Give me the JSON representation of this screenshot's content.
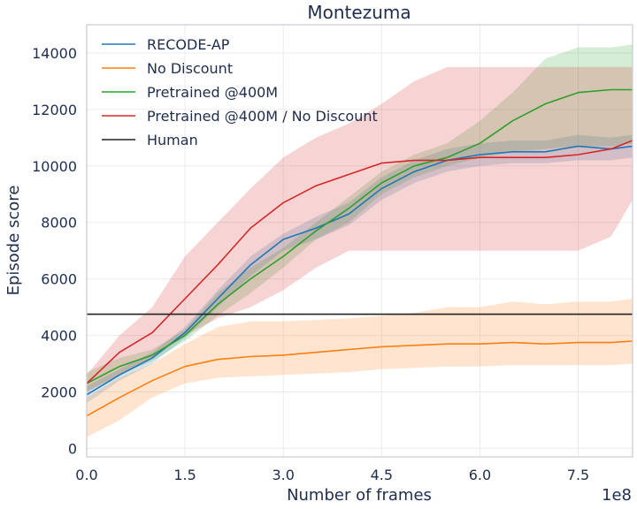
{
  "chart_data": {
    "type": "line",
    "title": "Montezuma",
    "xlabel": "Number of frames",
    "ylabel": "Episode score",
    "x_offset_label": "1e8",
    "xlim": [
      0,
      8.33
    ],
    "ylim": [
      -300,
      15000
    ],
    "xticks": [
      0,
      1.5,
      3.0,
      4.5,
      6.0,
      7.5
    ],
    "xtick_labels": [
      "0.0",
      "1.5",
      "3.0",
      "4.5",
      "6.0",
      "7.5"
    ],
    "yticks": [
      0,
      2000,
      4000,
      6000,
      8000,
      10000,
      12000,
      14000
    ],
    "ytick_labels": [
      "0",
      "2000",
      "4000",
      "6000",
      "8000",
      "10000",
      "12000",
      "14000"
    ],
    "grid": true,
    "legend_position": "top-left",
    "series": [
      {
        "name": "RECODE-AP",
        "color": "#1f77b4",
        "x": [
          0,
          0.5,
          1.0,
          1.5,
          2.0,
          2.5,
          3.0,
          3.5,
          4.0,
          4.5,
          5.0,
          5.5,
          6.0,
          6.5,
          7.0,
          7.5,
          8.0,
          8.33
        ],
        "values": [
          1900,
          2600,
          3200,
          4100,
          5300,
          6500,
          7400,
          7800,
          8300,
          9200,
          9800,
          10200,
          10400,
          10500,
          10500,
          10700,
          10600,
          10700
        ],
        "lower": [
          1600,
          2400,
          3000,
          3900,
          5000,
          6100,
          7000,
          7400,
          7900,
          8800,
          9400,
          9800,
          10000,
          10100,
          10100,
          10200,
          10200,
          10300
        ],
        "upper": [
          2200,
          2800,
          3400,
          4300,
          5600,
          6800,
          7600,
          8200,
          8700,
          9600,
          10200,
          10600,
          10800,
          10900,
          10900,
          11100,
          11000,
          11100
        ]
      },
      {
        "name": "No Discount",
        "color": "#ff7f0e",
        "x": [
          0,
          0.5,
          1.0,
          1.5,
          2.0,
          2.5,
          3.0,
          3.5,
          4.0,
          4.5,
          5.0,
          5.5,
          6.0,
          6.5,
          7.0,
          7.5,
          8.0,
          8.33
        ],
        "values": [
          1150,
          1800,
          2400,
          2900,
          3150,
          3250,
          3300,
          3400,
          3500,
          3600,
          3650,
          3700,
          3700,
          3750,
          3700,
          3750,
          3750,
          3800
        ],
        "lower": [
          400,
          1000,
          1800,
          2300,
          2500,
          2550,
          2600,
          2650,
          2700,
          2800,
          2850,
          2900,
          2900,
          2950,
          2950,
          2950,
          2950,
          3000
        ],
        "upper": [
          1800,
          2500,
          3000,
          3700,
          4300,
          4500,
          4500,
          4550,
          4600,
          4700,
          4800,
          5000,
          5000,
          5200,
          5100,
          5200,
          5200,
          5300
        ]
      },
      {
        "name": "Pretrained @400M",
        "color": "#2ca02c",
        "x": [
          0,
          0.5,
          1.0,
          1.5,
          2.0,
          2.5,
          3.0,
          3.5,
          4.0,
          4.5,
          5.0,
          5.5,
          6.0,
          6.5,
          7.0,
          7.5,
          8.0,
          8.33
        ],
        "values": [
          2300,
          2900,
          3300,
          4000,
          5100,
          6000,
          6800,
          7700,
          8500,
          9400,
          10000,
          10300,
          10800,
          11600,
          12200,
          12600,
          12700,
          12700
        ],
        "lower": [
          2000,
          2600,
          3100,
          3800,
          4700,
          5500,
          6400,
          7400,
          8000,
          9000,
          9600,
          10000,
          10300,
          10500,
          10600,
          10700,
          10700,
          10800
        ],
        "upper": [
          2700,
          3200,
          3500,
          4200,
          5500,
          6400,
          7100,
          8000,
          8900,
          9800,
          10400,
          10800,
          11600,
          12600,
          13800,
          14200,
          14200,
          14300
        ]
      },
      {
        "name": "Pretrained @400M / No Discount",
        "color": "#d62728",
        "x": [
          0,
          0.5,
          1.0,
          1.5,
          2.0,
          2.5,
          3.0,
          3.5,
          4.0,
          4.5,
          5.0,
          5.5,
          6.0,
          6.5,
          7.0,
          7.5,
          8.0,
          8.33
        ],
        "values": [
          2300,
          3400,
          4100,
          5300,
          6500,
          7800,
          8700,
          9300,
          9700,
          10100,
          10200,
          10200,
          10300,
          10300,
          10300,
          10400,
          10600,
          10900
        ],
        "lower": [
          2000,
          2600,
          3200,
          4000,
          4600,
          5000,
          5600,
          6400,
          7000,
          7000,
          7000,
          7000,
          7000,
          7000,
          7000,
          7000,
          7500,
          8800
        ],
        "upper": [
          2600,
          4000,
          5000,
          6800,
          8000,
          9200,
          10300,
          11000,
          11500,
          12200,
          13000,
          13500,
          13500,
          13500,
          13500,
          13500,
          13500,
          13500
        ]
      },
      {
        "name": "Human",
        "color": "#222222",
        "x": [
          0,
          8.33
        ],
        "values": [
          4750,
          4750
        ]
      }
    ]
  }
}
